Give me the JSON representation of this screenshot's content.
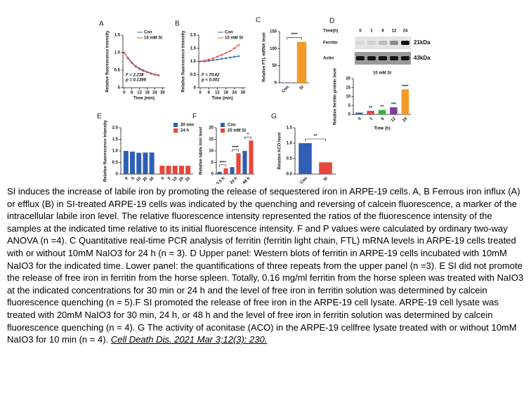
{
  "chart_data": [
    {
      "panel": "A",
      "type": "line",
      "ylabel": "Relative fluorescence intensity",
      "xlabel": "Time (min)",
      "x": [
        0,
        3,
        6,
        9,
        12,
        15,
        18,
        21,
        24,
        27
      ],
      "xlim": [
        -1,
        32
      ],
      "xticks": [
        0,
        6,
        12,
        18,
        24,
        30
      ],
      "ylim": [
        0,
        1.5
      ],
      "yticks": [
        0,
        {
          "value": 0.5,
          "label": "0.5"
        },
        {
          "value": 1,
          "label": "1.0"
        },
        {
          "value": 1.5,
          "label": "1.5"
        }
      ],
      "legend": "upper right",
      "annotations": [
        "F = 2.238",
        "p = 0.1399"
      ],
      "series": [
        {
          "name": "Con",
          "color": "#2f5fb3",
          "values": [
            1.0,
            0.85,
            0.72,
            0.62,
            0.55,
            0.5,
            0.45,
            0.41,
            0.38,
            0.36
          ]
        },
        {
          "name": "10 mM SI",
          "color": "#e8463a",
          "values": [
            1.0,
            0.83,
            0.7,
            0.6,
            0.53,
            0.48,
            0.44,
            0.4,
            0.37,
            0.35
          ]
        }
      ]
    },
    {
      "panel": "B",
      "type": "line",
      "ylabel": "Relative fluorescence intensity",
      "xlabel": "Time (min)",
      "x": [
        0,
        3,
        6,
        9,
        12,
        15,
        18,
        21,
        24,
        27
      ],
      "xlim": [
        -1,
        32
      ],
      "xticks": [
        0,
        6,
        12,
        18,
        24,
        30
      ],
      "ylim": [
        0,
        2
      ],
      "yticks": [
        0,
        {
          "value": 0.5,
          "label": "0.5"
        },
        {
          "value": 1,
          "label": "1.0"
        },
        {
          "value": 1.5,
          "label": "1.5"
        },
        {
          "value": 2,
          "label": "2.0"
        }
      ],
      "legend": "upper right",
      "annotations": [
        "F = 70.62",
        "p < 0.001"
      ],
      "series": [
        {
          "name": "Con",
          "color": "#2f5fb3",
          "values": [
            1.0,
            1.0,
            1.02,
            1.05,
            1.07,
            1.1,
            1.12,
            1.15,
            1.18,
            1.2
          ]
        },
        {
          "name": "10 mM SI",
          "color": "#e8463a",
          "values": [
            1.0,
            1.03,
            1.07,
            1.12,
            1.18,
            1.25,
            1.32,
            1.4,
            1.5,
            1.62
          ]
        }
      ]
    },
    {
      "panel": "C",
      "type": "bar",
      "ylabel": "Relative FTL mRNA level",
      "categories": [
        "Con",
        "SI"
      ],
      "values": [
        1,
        120
      ],
      "colors": [
        "#2f5fb3",
        "#f39a2b"
      ],
      "ylim": [
        0,
        150
      ],
      "yticks": [
        0,
        50,
        100,
        150
      ],
      "sig": [
        null,
        "****"
      ]
    },
    {
      "panel": "D",
      "type": "bar",
      "title": "10 mM SI",
      "ylabel": "Relative ferritin protein level",
      "xlabel": "Time (h)",
      "categories": [
        "0",
        "1",
        "6",
        "12",
        "24"
      ],
      "values": [
        1,
        2,
        2.5,
        4,
        14
      ],
      "colors": [
        "#2f5fb3",
        "#e8463a",
        "#3cae49",
        "#7b3fa0",
        "#f39a2b"
      ],
      "ylim": [
        0,
        20
      ],
      "yticks": [
        0,
        5,
        10,
        15,
        20
      ],
      "sig": [
        null,
        "**",
        "**",
        "***",
        "****"
      ],
      "blot": {
        "time_label": "Time(h)",
        "lanes": [
          "0",
          "1",
          "6",
          "12",
          "24"
        ],
        "rows": [
          "Ferritin",
          "Actin"
        ],
        "sizes": [
          "21kDa",
          "43kDa"
        ]
      }
    },
    {
      "panel": "E",
      "type": "grouped_bar",
      "grouping": "series",
      "ylabel": "Relative fluorescence intensity",
      "xlabel": "SI (mM)",
      "categories": [
        "0",
        "5",
        "10",
        "20",
        "30"
      ],
      "ylim": [
        0,
        2
      ],
      "yticks": [
        0,
        {
          "value": 0.5,
          "label": "0.5"
        },
        {
          "value": 1,
          "label": "1.0"
        },
        {
          "value": 1.5,
          "label": "1.5"
        },
        {
          "value": 2,
          "label": "2.0"
        }
      ],
      "legend": "upper right",
      "series": [
        {
          "name": "30 min",
          "color": "#2f5fb3",
          "values": [
            1.0,
            0.97,
            0.92,
            0.93,
            0.93
          ]
        },
        {
          "name": "24 h",
          "color": "#e8463a",
          "values": [
            0.36,
            0.36,
            0.36,
            0.36,
            0.36
          ]
        }
      ]
    },
    {
      "panel": "F",
      "type": "grouped_bar",
      "ylabel": "Relative labile iron level",
      "categories": [
        "0.5 h",
        "24 h",
        "48 h"
      ],
      "ylim": [
        0,
        20
      ],
      "yticks": [
        0,
        5,
        10,
        15,
        20
      ],
      "legend": "upper left",
      "sig": [
        "****",
        "****",
        "*"
      ],
      "series": [
        {
          "name": "Con",
          "color": "#2f5fb3",
          "values": [
            1,
            3,
            10
          ]
        },
        {
          "name": "20 mM SI",
          "color": "#e8463a",
          "values": [
            2.5,
            9,
            14.5
          ]
        }
      ]
    },
    {
      "panel": "G",
      "type": "bar",
      "ylabel": "Relative ACO level",
      "categories": [
        "Con",
        "SI"
      ],
      "values": [
        1.0,
        0.38
      ],
      "colors": [
        "#2f5fb3",
        "#e8463a"
      ],
      "ylim": [
        0,
        1.5
      ],
      "yticks": [
        {
          "value": 0,
          "label": "0.0"
        },
        {
          "value": 0.5,
          "label": "0.5"
        },
        {
          "value": 1,
          "label": "1.0"
        },
        {
          "value": 1.5,
          "label": "1.5"
        }
      ],
      "sig": [
        null,
        "**"
      ]
    }
  ],
  "caption": {
    "text": "SI induces the increase of labile iron by promoting the release of sequestered iron in ARPE-19 cells. A, B Ferrous iron influx (A) or efflux (B) in SI-treated ARPE-19 cells was indicated by the quenching and reversing of calcein fluorescence, a marker of the intracellular labile iron level. The relative fluorescence intensity represented the ratios of the fluorescence intensity of the samples at the indicated time relative to its initial fluorescence intensity. F and P values were calculated by ordinary two-way ANOVA (n =4). C Quantitative real-time PCR analysis of ferritin (ferritin light chain, FTL) mRNA levels in ARPE-19 cells treated with or without 10mM NaIO3 for 24 h (n = 3). D Upper panel: Western blots of ferritin in ARPE-19 cells incubated with 10mM NaIO3 for the indicated time. Lower panel: the quantifications of three repeats from the upper panel (n =3). E SI did not promote the release of free iron in ferritin from the horse spleen. Totally, 0.16 mg/ml ferritin from the horse spleen was treated with NaIO3 at the indicated concentrations for 30 min or 24 h and the level of free iron in ferritin solution was determined by calcein fluorescence quenching (n = 5).F SI promoted the release of free iron in the ARPE-19 cell lysate. ARPE-19 cell lysate was treated with 20mM NaIO3 for 30 min, 24 h, or 48 h and the level of free iron in ferritin solution was determined by calcein fluorescence quenching (n = 4). G The activity of aconitase (ACO) in the ARPE-19 cellfree lysate treated with or without 10mM NaIO3 for 10 min (n = 4).",
    "citation": "Cell Death Dis. 2021 Mar 3;12(3): 230."
  }
}
